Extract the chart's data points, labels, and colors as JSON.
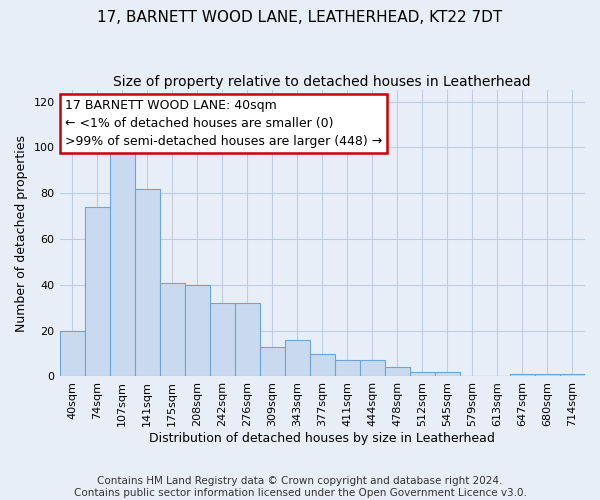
{
  "title1": "17, BARNETT WOOD LANE, LEATHERHEAD, KT22 7DT",
  "title2": "Size of property relative to detached houses in Leatherhead",
  "xlabel": "Distribution of detached houses by size in Leatherhead",
  "ylabel": "Number of detached properties",
  "categories": [
    "40sqm",
    "74sqm",
    "107sqm",
    "141sqm",
    "175sqm",
    "208sqm",
    "242sqm",
    "276sqm",
    "309sqm",
    "343sqm",
    "377sqm",
    "411sqm",
    "444sqm",
    "478sqm",
    "512sqm",
    "545sqm",
    "579sqm",
    "613sqm",
    "647sqm",
    "680sqm",
    "714sqm"
  ],
  "values": [
    20,
    74,
    100,
    82,
    41,
    40,
    32,
    32,
    13,
    16,
    10,
    7,
    7,
    4,
    2,
    2,
    0,
    0,
    1,
    1,
    1
  ],
  "bar_color": "#c9daf0",
  "bar_edge_color": "#6aa5d9",
  "annotation_line1": "17 BARNETT WOOD LANE: 40sqm",
  "annotation_line2": "← <1% of detached houses are smaller (0)",
  "annotation_line3": ">99% of semi-detached houses are larger (448) →",
  "annotation_box_facecolor": "#ffffff",
  "annotation_box_edgecolor": "#cc0000",
  "ylim": [
    0,
    125
  ],
  "yticks": [
    0,
    20,
    40,
    60,
    80,
    100,
    120
  ],
  "footer1": "Contains HM Land Registry data © Crown copyright and database right 2024.",
  "footer2": "Contains public sector information licensed under the Open Government Licence v3.0.",
  "bg_color": "#e8eef8",
  "plot_bg_color": "#e8eef8",
  "grid_color": "#c0cce0",
  "title1_fontsize": 11,
  "title2_fontsize": 10,
  "xlabel_fontsize": 9,
  "ylabel_fontsize": 9,
  "tick_fontsize": 8,
  "annotation_fontsize": 9,
  "footer_fontsize": 7.5
}
